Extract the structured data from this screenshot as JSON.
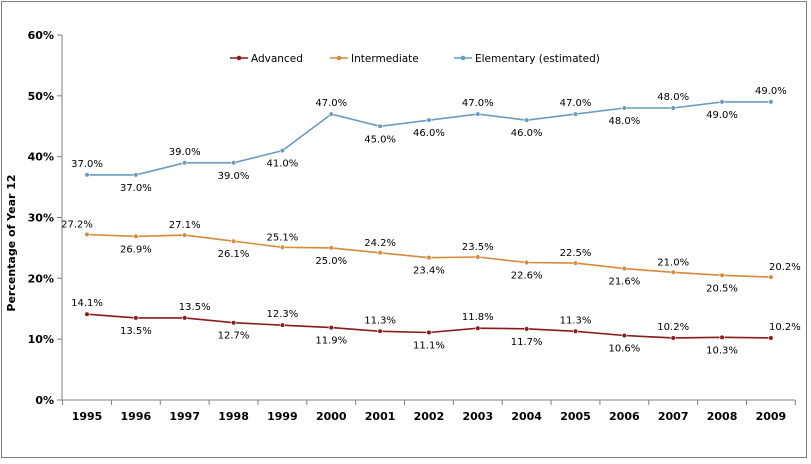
{
  "chart_data": {
    "type": "line",
    "title": "",
    "xlabel": "",
    "ylabel": "Percentage of Year 12",
    "ylim": [
      0,
      60
    ],
    "ytick_labels": [
      "0%",
      "10%",
      "20%",
      "30%",
      "40%",
      "50%",
      "60%"
    ],
    "yticks": [
      0,
      10,
      20,
      30,
      40,
      50,
      60
    ],
    "grid": false,
    "legend_position": "top",
    "categories": [
      "1995",
      "1996",
      "1997",
      "1998",
      "1999",
      "2000",
      "2001",
      "2002",
      "2003",
      "2004",
      "2005",
      "2006",
      "2007",
      "2008",
      "2009"
    ],
    "series": [
      {
        "name": "Advanced",
        "color": "#8b1a1a",
        "values": [
          14.1,
          13.5,
          13.5,
          12.7,
          12.3,
          11.9,
          11.3,
          11.1,
          11.8,
          11.7,
          11.3,
          10.6,
          10.2,
          10.3,
          10.2
        ],
        "labels": [
          "14.1%",
          "13.5%",
          "13.5%",
          "12.7%",
          "12.3%",
          "11.9%",
          "11.3%",
          "11.1%",
          "11.8%",
          "11.7%",
          "11.3%",
          "10.6%",
          "10.2%",
          "10.3%",
          "10.2%"
        ]
      },
      {
        "name": "Intermediate",
        "color": "#d9893a",
        "values": [
          27.2,
          26.9,
          27.1,
          26.1,
          25.1,
          25.0,
          24.2,
          23.4,
          23.5,
          22.6,
          22.5,
          21.6,
          21.0,
          20.5,
          20.2
        ],
        "labels": [
          "27.2%",
          "26.9%",
          "27.1%",
          "26.1%",
          "25.1%",
          "25.0%",
          "24.2%",
          "23.4%",
          "23.5%",
          "22.6%",
          "22.5%",
          "21.6%",
          "21.0%",
          "20.5%",
          "20.2%"
        ]
      },
      {
        "name": "Elementary (estimated)",
        "color": "#6a9cc0",
        "values": [
          37.0,
          37.0,
          39.0,
          39.0,
          41.0,
          47.0,
          45.0,
          46.0,
          47.0,
          46.0,
          47.0,
          48.0,
          48.0,
          49.0,
          49.0
        ],
        "labels": [
          "37.0%",
          "37.0%",
          "39.0%",
          "39.0%",
          "41.0%",
          "47.0%",
          "45.0%",
          "46.0%",
          "47.0%",
          "46.0%",
          "47.0%",
          "48.0%",
          "48.0%",
          "49.0%",
          "49.0%"
        ]
      }
    ]
  }
}
